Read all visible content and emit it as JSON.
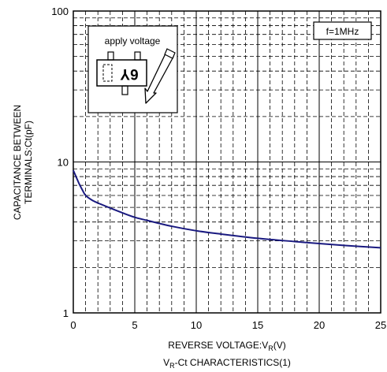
{
  "chart_data": {
    "type": "line",
    "title": "",
    "caption": "VR-Ct CHARACTERISTICS(1)",
    "caption_parts": {
      "pre": "V",
      "sub": "R",
      "post": "-Ct CHARACTERISTICS(1)"
    },
    "xlabel": "REVERSE VOLTAGE:VR(V)",
    "xlabel_parts": {
      "pre": "REVERSE VOLTAGE:V",
      "sub": "R",
      "post": "(V)"
    },
    "ylabel_lines": [
      "CAPACITANCE BETWEEN",
      "TERMINALS:Ct(pF)"
    ],
    "xlim": [
      0,
      25
    ],
    "ylim": [
      1,
      100
    ],
    "yscale": "log",
    "grid": "dashed",
    "x_ticks": [
      0,
      5,
      10,
      15,
      20,
      25
    ],
    "x_tick_labels": [
      "0",
      "5",
      "10",
      "15",
      "20",
      "25"
    ],
    "y_ticks": [
      1,
      10,
      100
    ],
    "y_tick_labels": [
      "1",
      "10",
      "100"
    ],
    "series": [
      {
        "color": "#1a1a80",
        "x": [
          0,
          0.25,
          0.5,
          0.75,
          1.0,
          1.5,
          2,
          3,
          4,
          5,
          6,
          8,
          10,
          12,
          15,
          18,
          20,
          22,
          25
        ],
        "y": [
          8.8,
          7.9,
          7.1,
          6.5,
          6.0,
          5.6,
          5.35,
          4.95,
          4.6,
          4.3,
          4.1,
          3.75,
          3.5,
          3.33,
          3.12,
          2.97,
          2.88,
          2.8,
          2.7
        ]
      }
    ],
    "annotations": {
      "frequency_box": "f=1MHz",
      "inset_label": "apply voltage",
      "package_marking": "6Y"
    }
  }
}
